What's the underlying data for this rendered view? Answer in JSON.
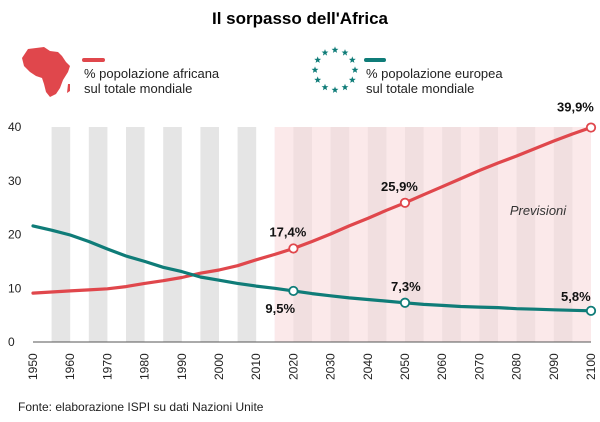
{
  "chart_data": {
    "type": "line",
    "title": "Il sorpasso dell'Africa",
    "xlabel": "",
    "ylabel": "",
    "x": [
      1950,
      1955,
      1960,
      1965,
      1970,
      1975,
      1980,
      1985,
      1990,
      1995,
      2000,
      2005,
      2010,
      2015,
      2020,
      2025,
      2030,
      2035,
      2040,
      2045,
      2050,
      2055,
      2060,
      2065,
      2070,
      2075,
      2080,
      2085,
      2090,
      2095,
      2100
    ],
    "x_ticks": [
      "1950",
      "1960",
      "1970",
      "1980",
      "1990",
      "2000",
      "2010",
      "2020",
      "2030",
      "2040",
      "2050",
      "2060",
      "2070",
      "2080",
      "2090",
      "2100"
    ],
    "ylim": [
      0,
      40
    ],
    "y_ticks": [
      "0",
      "10",
      "20",
      "30",
      "40"
    ],
    "series": [
      {
        "name": "% popolazione africana sul totale mondiale",
        "color": "#e0474c",
        "values": [
          9.1,
          9.3,
          9.5,
          9.7,
          9.9,
          10.3,
          10.9,
          11.4,
          12.0,
          12.8,
          13.4,
          14.2,
          15.3,
          16.3,
          17.4,
          18.7,
          20.1,
          21.6,
          23.0,
          24.5,
          25.9,
          27.4,
          28.9,
          30.4,
          31.9,
          33.3,
          34.6,
          36.0,
          37.4,
          38.7,
          39.9
        ]
      },
      {
        "name": "% popolazione europea sul totale mondiale",
        "color": "#0f7c78",
        "values": [
          21.6,
          20.8,
          19.9,
          18.7,
          17.3,
          16.0,
          15.0,
          13.9,
          13.1,
          12.1,
          11.5,
          10.9,
          10.4,
          10.0,
          9.5,
          9.0,
          8.6,
          8.2,
          7.9,
          7.6,
          7.3,
          7.0,
          6.8,
          6.6,
          6.5,
          6.4,
          6.2,
          6.1,
          6.0,
          5.9,
          5.8
        ]
      }
    ],
    "annotations": [
      {
        "series": 0,
        "x": 2020,
        "value": 17.4,
        "label": "17,4%"
      },
      {
        "series": 0,
        "x": 2050,
        "value": 25.9,
        "label": "25,9%"
      },
      {
        "series": 0,
        "x": 2100,
        "value": 39.9,
        "label": "39,9%"
      },
      {
        "series": 1,
        "x": 2020,
        "value": 9.5,
        "label": "9,5%"
      },
      {
        "series": 1,
        "x": 2050,
        "value": 7.3,
        "label": "7,3%"
      },
      {
        "series": 1,
        "x": 2100,
        "value": 5.8,
        "label": "5,8%"
      }
    ],
    "forecast": {
      "from": 2015,
      "to": 2100,
      "label": "Previsioni"
    },
    "grid": false,
    "legend_position": "top",
    "source": "Fonte: elaborazione ISPI su dati Nazioni Unite"
  },
  "legend": {
    "africa": {
      "line1": "% popolazione africana",
      "line2": "sul totale mondiale",
      "icon": "africa-map-icon"
    },
    "europe": {
      "line1": "% popolazione europea",
      "line2": "sul totale mondiale",
      "icon": "eu-stars-icon"
    }
  },
  "colors": {
    "africa": "#e0474c",
    "europe": "#0f7c78",
    "stripe_grey": "#e5e5e5",
    "forecast_bg": "#f1dfe0",
    "forecast_stripe": "#fbe9ea"
  }
}
